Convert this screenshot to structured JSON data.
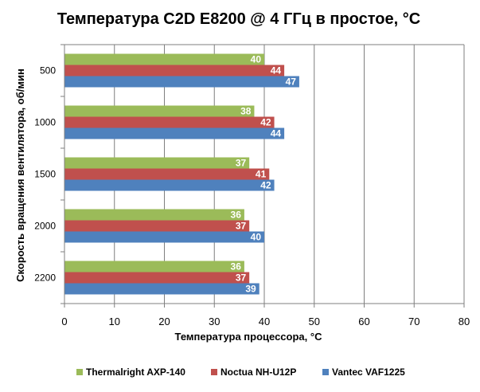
{
  "chart_data": {
    "type": "bar",
    "orientation": "horizontal",
    "title": "Температура C2D E8200 @ 4 ГГц в простое, °C",
    "xlabel": "Температура процессора, °C",
    "ylabel": "Скорость вращения вентилятора, об/мин",
    "xlim": [
      0,
      80
    ],
    "xticks": [
      "0",
      "10",
      "20",
      "30",
      "40",
      "50",
      "60",
      "70",
      "80"
    ],
    "categories": [
      "500",
      "1000",
      "1500",
      "2000",
      "2200"
    ],
    "series": [
      {
        "name": "Thermalright AXP-140",
        "color": "#9bbb59",
        "values": [
          40,
          38,
          37,
          36,
          36
        ]
      },
      {
        "name": "Noctua NH-U12P",
        "color": "#c0504d",
        "values": [
          44,
          42,
          41,
          37,
          37
        ]
      },
      {
        "name": "Vantec VAF1225",
        "color": "#4f81bd",
        "values": [
          47,
          44,
          42,
          40,
          39
        ]
      }
    ],
    "grid": "vertical",
    "legend_position": "bottom"
  }
}
